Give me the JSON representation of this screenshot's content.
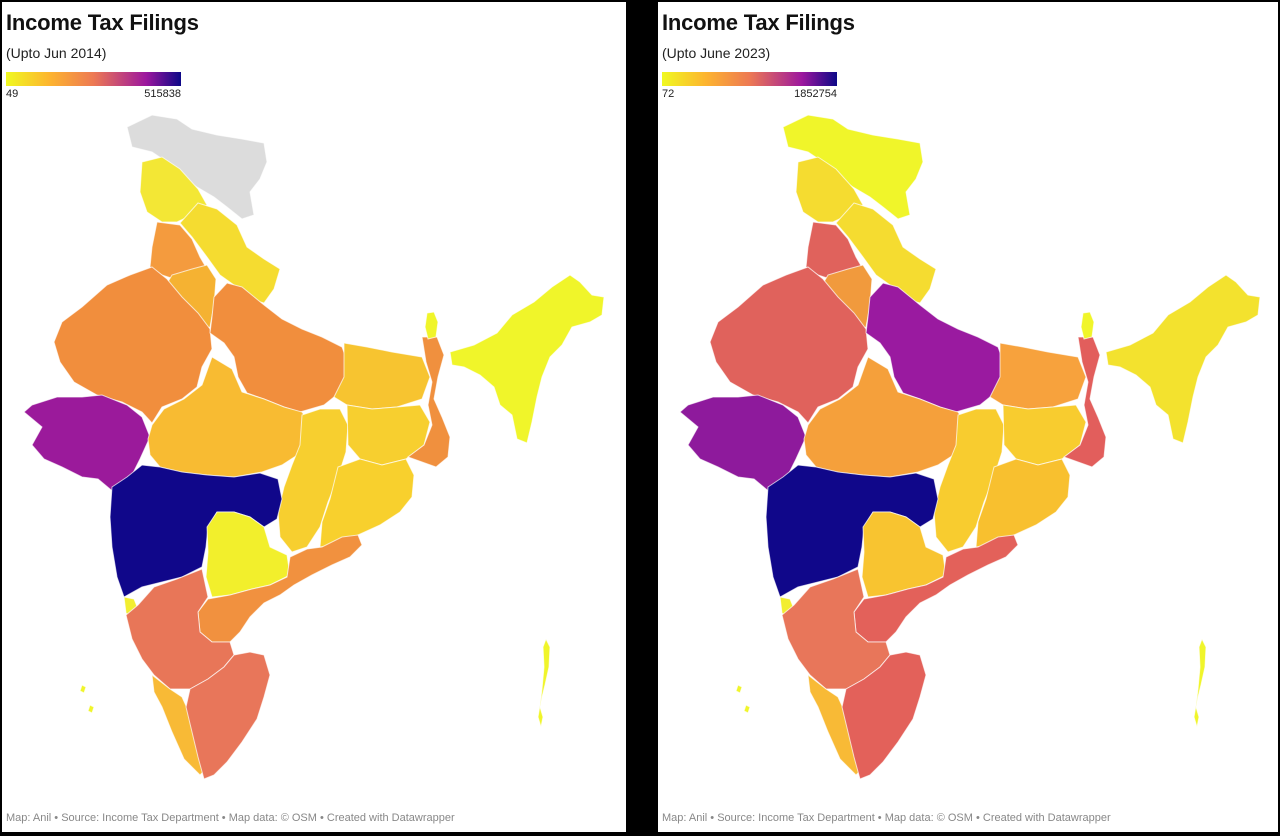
{
  "left": {
    "title": "Income Tax Filings",
    "subtitle": "(Upto Jun 2014)",
    "legend_min": "49",
    "legend_max": "515838",
    "footer": "Map: Anil • Source: Income Tax Department • Map data: © OSM  • Created with Datawrapper",
    "colors": {
      "jk": "#dcdcdc",
      "hp": "#f3e735",
      "uk": "#f5dc30",
      "pb": "#f49b3e",
      "hr": "#f5b232",
      "rj": "#f18e3d",
      "up": "#f18e3d",
      "bihar": "#f7c430",
      "gj": "#9b1a9b",
      "mp": "#f8bb32",
      "cg": "#f7cf2f",
      "jh": "#f7cf2f",
      "wb": "#f0903e",
      "od": "#f8d02d",
      "mh": "#10078a",
      "tg": "#f2ef2c",
      "ap": "#f1913f",
      "ka": "#e87658",
      "goa": "#f2ee30",
      "kl": "#f8ba36",
      "tn": "#e8765a",
      "ne": "#f0f52a",
      "sk": "#f0f52a",
      "islands": "#f0f52a"
    }
  },
  "right": {
    "title": "Income Tax Filings",
    "subtitle": "(Upto June 2023)",
    "legend_min": "72",
    "legend_max": "1852754",
    "footer": "Map: Anil • Source: Income Tax Department • Map data: © OSM  • Created with Datawrapper",
    "colors": {
      "jk": "#f0f52a",
      "hp": "#f5dc30",
      "uk": "#f5dc30",
      "pb": "#e0625c",
      "hr": "#f19a3d",
      "rj": "#e0625c",
      "up": "#9a1aa0",
      "bihar": "#f7a23d",
      "gj": "#8e1a9c",
      "mp": "#f5a03b",
      "cg": "#f8cc2f",
      "jh": "#f8cc2f",
      "wb": "#e25e5c",
      "od": "#f8c02f",
      "mh": "#10078a",
      "tg": "#f8c430",
      "ap": "#e3615a",
      "ka": "#e8765a",
      "goa": "#f2ee30",
      "kl": "#f8ba36",
      "tn": "#e3615a",
      "ne": "#f3e22e",
      "sk": "#f0f52a",
      "islands": "#f0f52a"
    }
  }
}
